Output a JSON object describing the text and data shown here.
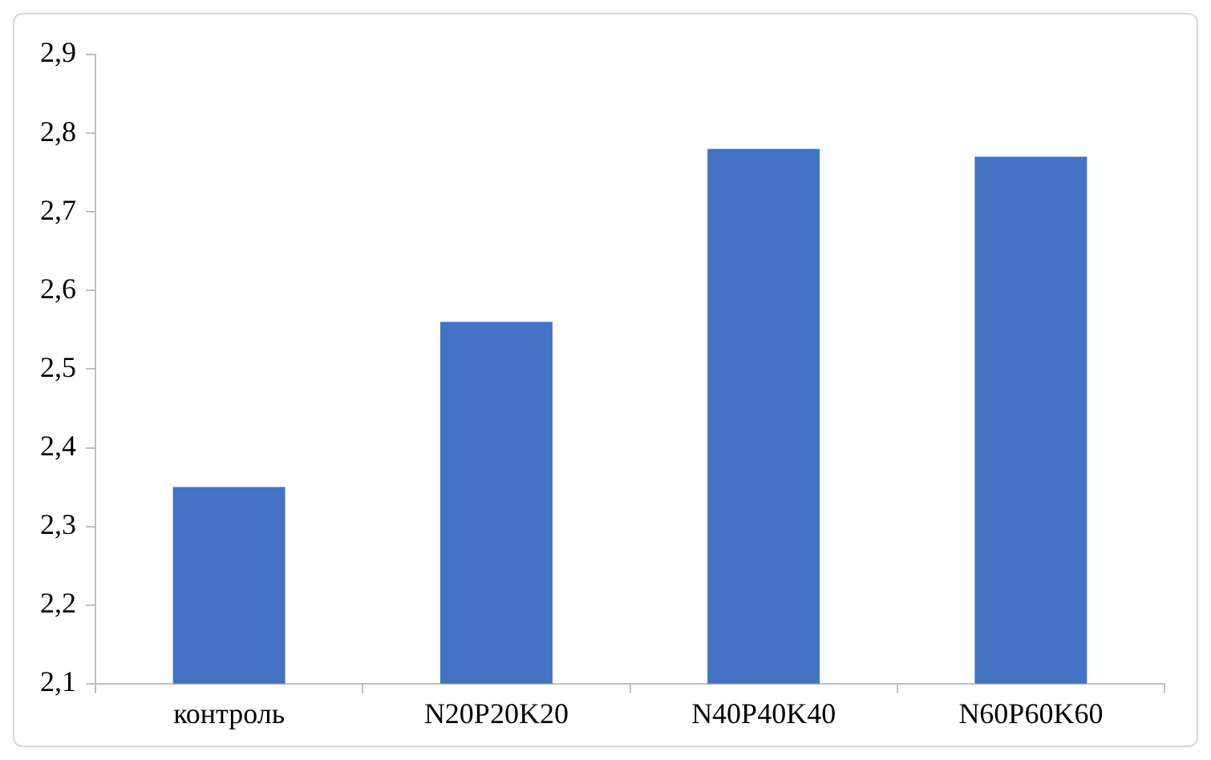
{
  "chart_data": {
    "type": "bar",
    "categories": [
      "контроль",
      "N20P20K20",
      "N40P40K40",
      "N60P60K60"
    ],
    "values": [
      2.35,
      2.56,
      2.78,
      2.77
    ],
    "color": "#4472c4",
    "ylim": [
      2.1,
      2.9
    ],
    "yticks": [
      {
        "value": 2.1,
        "label": "2,1"
      },
      {
        "value": 2.2,
        "label": "2,2"
      },
      {
        "value": 2.3,
        "label": "2,3"
      },
      {
        "value": 2.4,
        "label": "2,4"
      },
      {
        "value": 2.5,
        "label": "2,5"
      },
      {
        "value": 2.6,
        "label": "2,6"
      },
      {
        "value": 2.7,
        "label": "2,7"
      },
      {
        "value": 2.8,
        "label": "2,8"
      },
      {
        "value": 2.9,
        "label": "2,9"
      }
    ],
    "grid": false,
    "legend": false
  }
}
